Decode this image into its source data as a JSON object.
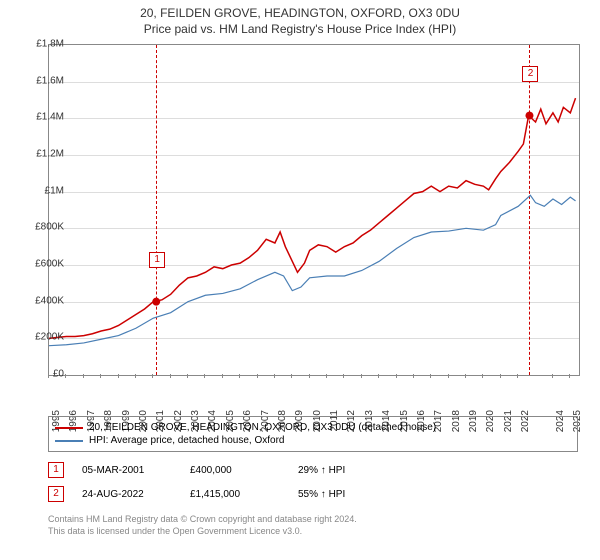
{
  "title_main": "20, FEILDEN GROVE, HEADINGTON, OXFORD, OX3 0DU",
  "title_sub": "Price paid vs. HM Land Registry's House Price Index (HPI)",
  "chart": {
    "type": "line",
    "background_color": "#ffffff",
    "grid_color": "#dddddd",
    "axis_color": "#888888",
    "label_fontsize": 10,
    "title_fontsize": 12,
    "x": {
      "min": 1995,
      "max": 2025.5,
      "tick_step": 1,
      "labels": [
        "1995",
        "1996",
        "1997",
        "1998",
        "1999",
        "2000",
        "2001",
        "2002",
        "2003",
        "2004",
        "2005",
        "2006",
        "2007",
        "2008",
        "2009",
        "2010",
        "2011",
        "2012",
        "2013",
        "2014",
        "2015",
        "2016",
        "2017",
        "2018",
        "2019",
        "2020",
        "2021",
        "2022",
        "2024",
        "2025"
      ]
    },
    "y": {
      "min": 0,
      "max": 1800000,
      "tick_step": 200000,
      "labels": [
        "£0",
        "£200K",
        "£400K",
        "£600K",
        "£800K",
        "£1M",
        "£1.2M",
        "£1.4M",
        "£1.6M",
        "£1.8M"
      ]
    },
    "series": [
      {
        "name": "price_paid",
        "label": "20, FEILDEN GROVE, HEADINGTON, OXFORD, OX3 0DU (detached house)",
        "color": "#cc0000",
        "line_width": 1.5,
        "points": [
          [
            1995,
            200000
          ],
          [
            1995.5,
            205000
          ],
          [
            1996,
            210000
          ],
          [
            1996.5,
            210000
          ],
          [
            1997,
            215000
          ],
          [
            1997.5,
            225000
          ],
          [
            1998,
            240000
          ],
          [
            1998.5,
            250000
          ],
          [
            1999,
            270000
          ],
          [
            1999.5,
            300000
          ],
          [
            2000,
            330000
          ],
          [
            2000.5,
            360000
          ],
          [
            2001,
            400000
          ],
          [
            2001.5,
            410000
          ],
          [
            2002,
            440000
          ],
          [
            2002.5,
            490000
          ],
          [
            2003,
            530000
          ],
          [
            2003.5,
            540000
          ],
          [
            2004,
            560000
          ],
          [
            2004.5,
            590000
          ],
          [
            2005,
            580000
          ],
          [
            2005.5,
            600000
          ],
          [
            2006,
            610000
          ],
          [
            2006.5,
            640000
          ],
          [
            2007,
            680000
          ],
          [
            2007.5,
            740000
          ],
          [
            2008,
            720000
          ],
          [
            2008.3,
            780000
          ],
          [
            2008.6,
            700000
          ],
          [
            2009,
            620000
          ],
          [
            2009.3,
            560000
          ],
          [
            2009.7,
            610000
          ],
          [
            2010,
            680000
          ],
          [
            2010.5,
            710000
          ],
          [
            2011,
            700000
          ],
          [
            2011.5,
            670000
          ],
          [
            2012,
            700000
          ],
          [
            2012.5,
            720000
          ],
          [
            2013,
            760000
          ],
          [
            2013.5,
            790000
          ],
          [
            2014,
            830000
          ],
          [
            2014.5,
            870000
          ],
          [
            2015,
            910000
          ],
          [
            2015.5,
            950000
          ],
          [
            2016,
            990000
          ],
          [
            2016.5,
            1000000
          ],
          [
            2017,
            1030000
          ],
          [
            2017.5,
            1000000
          ],
          [
            2018,
            1030000
          ],
          [
            2018.5,
            1020000
          ],
          [
            2019,
            1060000
          ],
          [
            2019.5,
            1040000
          ],
          [
            2020,
            1030000
          ],
          [
            2020.3,
            1010000
          ],
          [
            2020.7,
            1070000
          ],
          [
            2021,
            1110000
          ],
          [
            2021.5,
            1160000
          ],
          [
            2022,
            1220000
          ],
          [
            2022.3,
            1260000
          ],
          [
            2022.6,
            1415000
          ],
          [
            2023,
            1380000
          ],
          [
            2023.3,
            1450000
          ],
          [
            2023.6,
            1370000
          ],
          [
            2024,
            1430000
          ],
          [
            2024.3,
            1380000
          ],
          [
            2024.6,
            1460000
          ],
          [
            2025,
            1430000
          ],
          [
            2025.3,
            1510000
          ]
        ]
      },
      {
        "name": "hpi",
        "label": "HPI: Average price, detached house, Oxford",
        "color": "#4a7fb5",
        "line_width": 1.2,
        "points": [
          [
            1995,
            160000
          ],
          [
            1996,
            165000
          ],
          [
            1997,
            175000
          ],
          [
            1998,
            195000
          ],
          [
            1999,
            215000
          ],
          [
            2000,
            255000
          ],
          [
            2001,
            310000
          ],
          [
            2002,
            340000
          ],
          [
            2003,
            400000
          ],
          [
            2004,
            435000
          ],
          [
            2005,
            445000
          ],
          [
            2006,
            470000
          ],
          [
            2007,
            520000
          ],
          [
            2008,
            560000
          ],
          [
            2008.5,
            540000
          ],
          [
            2009,
            460000
          ],
          [
            2009.5,
            480000
          ],
          [
            2010,
            530000
          ],
          [
            2011,
            540000
          ],
          [
            2012,
            540000
          ],
          [
            2013,
            570000
          ],
          [
            2014,
            620000
          ],
          [
            2015,
            690000
          ],
          [
            2016,
            750000
          ],
          [
            2017,
            780000
          ],
          [
            2018,
            785000
          ],
          [
            2019,
            800000
          ],
          [
            2020,
            790000
          ],
          [
            2020.7,
            820000
          ],
          [
            2021,
            870000
          ],
          [
            2022,
            920000
          ],
          [
            2022.7,
            980000
          ],
          [
            2023,
            940000
          ],
          [
            2023.5,
            920000
          ],
          [
            2024,
            960000
          ],
          [
            2024.5,
            930000
          ],
          [
            2025,
            970000
          ],
          [
            2025.3,
            950000
          ]
        ]
      }
    ],
    "sale_markers": [
      {
        "id": "1",
        "x": 2001.17,
        "y": 400000,
        "color": "#cc0000",
        "box_y_offset": -50
      },
      {
        "id": "2",
        "x": 2022.65,
        "y": 1415000,
        "color": "#cc0000",
        "box_y_offset": -50
      }
    ]
  },
  "legend": [
    {
      "color": "#cc0000",
      "label_path": "chart.series.0.label"
    },
    {
      "color": "#4a7fb5",
      "label_path": "chart.series.1.label"
    }
  ],
  "sales": [
    {
      "id": "1",
      "color": "#cc0000",
      "date": "05-MAR-2001",
      "price": "£400,000",
      "delta": "29% ↑ HPI"
    },
    {
      "id": "2",
      "color": "#cc0000",
      "date": "24-AUG-2022",
      "price": "£1,415,000",
      "delta": "55% ↑ HPI"
    }
  ],
  "footer_line1": "Contains HM Land Registry data © Crown copyright and database right 2024.",
  "footer_line2": "This data is licensed under the Open Government Licence v3.0."
}
